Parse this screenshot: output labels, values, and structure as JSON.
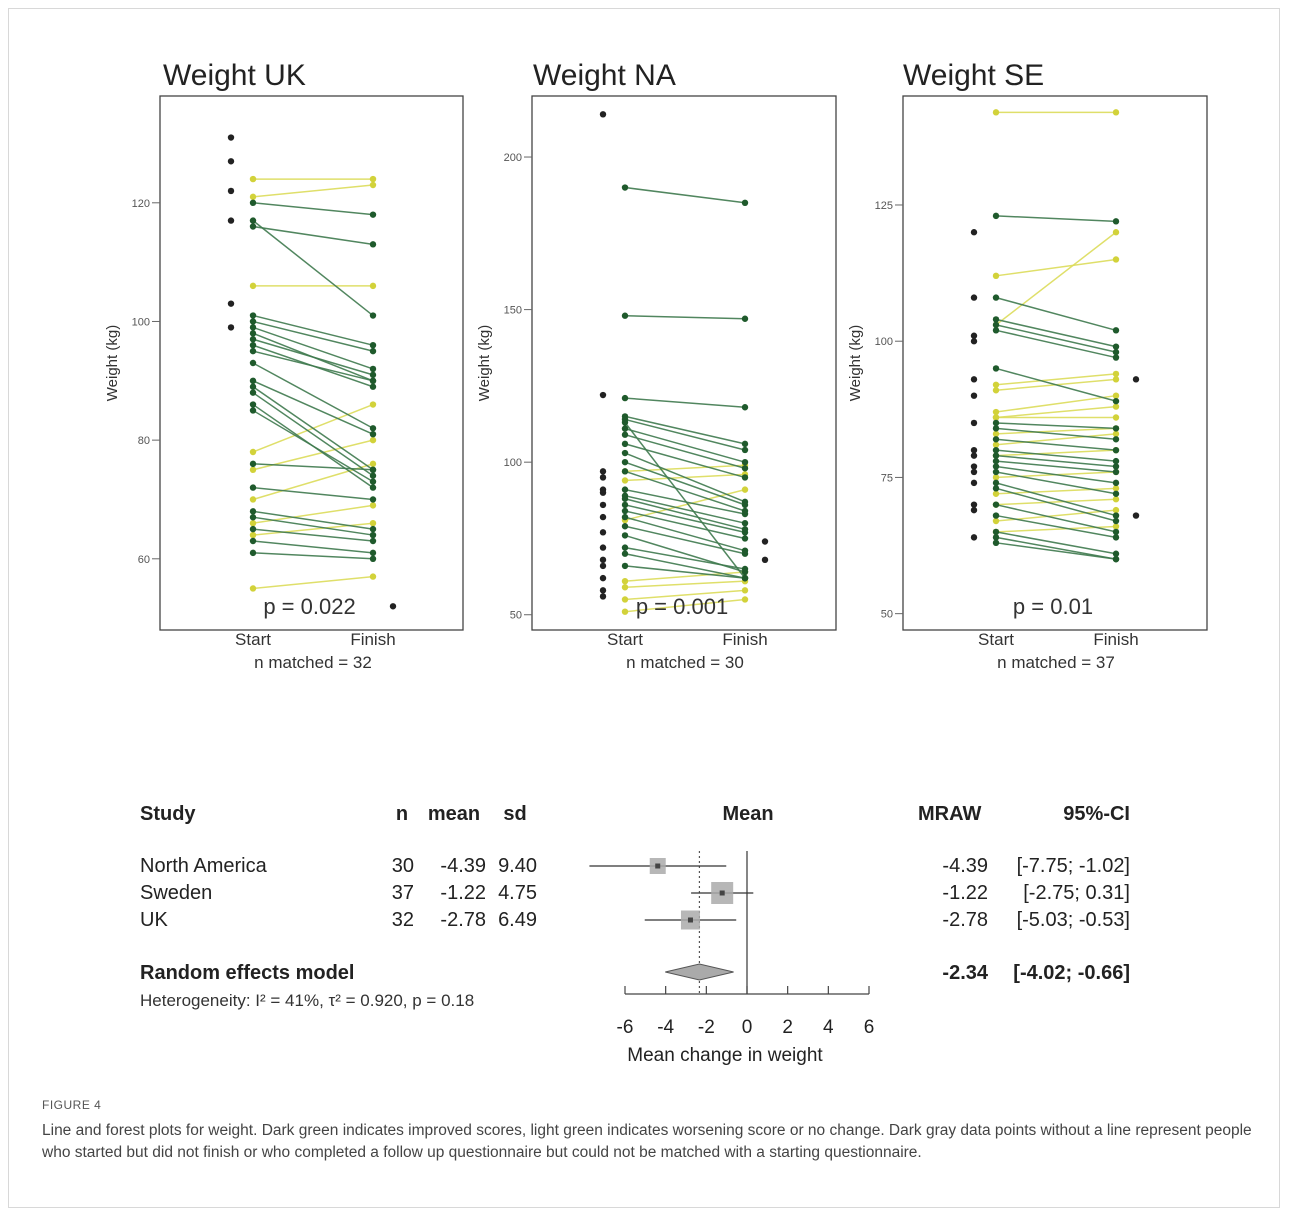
{
  "figure": {
    "label": "FIGURE 4",
    "caption": "Line and forest plots for weight. Dark green indicates improved scores, light green indicates worsening score or no change. Dark gray data points without a line represent people who started but did not finish or who completed a follow up questionnaire but could not be matched with a starting questionnaire."
  },
  "colors": {
    "improved": "#3f7a4e",
    "worsened": "#dcdc5a",
    "unmatched": "#222222",
    "axis": "#555555"
  },
  "chart_data": [
    {
      "type": "line",
      "title": "Weight UK",
      "ylabel": "Weight (kg)",
      "categories": [
        "Start",
        "Finish"
      ],
      "n_label": "n matched = 32",
      "p_label": "p = 0.022",
      "ylim": [
        48,
        138
      ],
      "yticks": [
        60,
        80,
        100,
        120
      ],
      "pairs": [
        [
          117,
          101
        ],
        [
          101,
          96
        ],
        [
          100,
          95
        ],
        [
          99,
          92
        ],
        [
          98,
          90
        ],
        [
          97,
          91
        ],
        [
          96,
          89
        ],
        [
          95,
          90
        ],
        [
          93,
          82
        ],
        [
          90,
          81
        ],
        [
          89,
          75
        ],
        [
          88,
          74
        ],
        [
          86,
          72
        ],
        [
          85,
          73
        ],
        [
          76,
          75
        ],
        [
          72,
          70
        ],
        [
          68,
          65
        ],
        [
          67,
          64
        ],
        [
          65,
          63
        ],
        [
          63,
          61
        ],
        [
          61,
          60
        ],
        [
          124,
          124
        ],
        [
          121,
          123
        ],
        [
          120,
          118
        ],
        [
          116,
          113
        ],
        [
          106,
          106
        ],
        [
          78,
          86
        ],
        [
          75,
          80
        ],
        [
          70,
          76
        ],
        [
          66,
          69
        ],
        [
          64,
          66
        ],
        [
          55,
          57
        ]
      ],
      "unmatched_start": [
        131,
        127,
        122,
        117,
        103,
        99
      ],
      "unmatched_finish": [
        52
      ]
    },
    {
      "type": "line",
      "title": "Weight NA",
      "ylabel": "Weight (kg)",
      "categories": [
        "Start",
        "Finish"
      ],
      "n_label": "n matched = 30",
      "p_label": "p = 0.001",
      "ylim": [
        45,
        220
      ],
      "yticks": [
        50,
        100,
        150,
        200
      ],
      "pairs": [
        [
          190,
          185
        ],
        [
          148,
          147
        ],
        [
          121,
          118
        ],
        [
          115,
          106
        ],
        [
          114,
          104
        ],
        [
          113,
          62
        ],
        [
          111,
          100
        ],
        [
          109,
          98
        ],
        [
          106,
          95
        ],
        [
          103,
          87
        ],
        [
          100,
          86
        ],
        [
          97,
          84
        ],
        [
          91,
          83
        ],
        [
          89,
          80
        ],
        [
          88,
          78
        ],
        [
          86,
          77
        ],
        [
          84,
          75
        ],
        [
          82,
          71
        ],
        [
          79,
          70
        ],
        [
          76,
          64
        ],
        [
          72,
          65
        ],
        [
          70,
          62
        ],
        [
          66,
          62
        ],
        [
          97,
          99
        ],
        [
          94,
          96
        ],
        [
          81,
          91
        ],
        [
          61,
          64
        ],
        [
          59,
          61
        ],
        [
          55,
          58
        ],
        [
          51,
          55
        ]
      ],
      "unmatched_start": [
        214,
        122,
        97,
        95,
        91,
        90,
        86,
        82,
        77,
        72,
        68,
        66,
        62,
        58,
        56
      ],
      "unmatched_finish": [
        74,
        68
      ]
    },
    {
      "type": "line",
      "title": "Weight SE",
      "ylabel": "Weight (kg)",
      "categories": [
        "Start",
        "Finish"
      ],
      "n_label": "n matched = 37",
      "p_label": "p = 0.01",
      "ylim": [
        47,
        145
      ],
      "yticks": [
        50,
        75,
        100,
        125
      ],
      "pairs": [
        [
          123,
          122
        ],
        [
          108,
          102
        ],
        [
          104,
          99
        ],
        [
          103,
          98
        ],
        [
          102,
          97
        ],
        [
          95,
          89
        ],
        [
          86,
          86
        ],
        [
          85,
          84
        ],
        [
          84,
          82
        ],
        [
          82,
          80
        ],
        [
          80,
          78
        ],
        [
          79,
          77
        ],
        [
          78,
          76
        ],
        [
          77,
          74
        ],
        [
          76,
          72
        ],
        [
          74,
          68
        ],
        [
          73,
          67
        ],
        [
          70,
          65
        ],
        [
          68,
          64
        ],
        [
          65,
          61
        ],
        [
          64,
          60
        ],
        [
          63,
          60
        ],
        [
          142,
          142
        ],
        [
          112,
          115
        ],
        [
          103,
          120
        ],
        [
          92,
          94
        ],
        [
          91,
          93
        ],
        [
          87,
          90
        ],
        [
          86,
          88
        ],
        [
          83,
          84
        ],
        [
          81,
          83
        ],
        [
          79,
          80
        ],
        [
          75,
          76
        ],
        [
          72,
          73
        ],
        [
          70,
          71
        ],
        [
          67,
          69
        ],
        [
          65,
          66
        ]
      ],
      "unmatched_start": [
        120,
        108,
        101,
        100,
        93,
        90,
        85,
        80,
        79,
        77,
        76,
        74,
        70,
        69,
        64
      ],
      "unmatched_finish": [
        93,
        68
      ]
    },
    {
      "type": "forest",
      "headers": {
        "study": "Study",
        "n": "n",
        "mean": "mean",
        "sd": "sd",
        "plot": "Mean",
        "mraw": "MRAW",
        "ci": "95%-CI"
      },
      "studies": [
        {
          "name": "North America",
          "n": "30",
          "mean": "-4.39",
          "sd": "9.40",
          "mraw": "-4.39",
          "ci": "[-7.75; -1.02]",
          "est": -4.39,
          "lo": -7.75,
          "hi": -1.02,
          "weight": 0.6
        },
        {
          "name": "Sweden",
          "n": "37",
          "mean": "-1.22",
          "sd": "4.75",
          "mraw": "-1.22",
          "ci": "[-2.75;  0.31]",
          "est": -1.22,
          "lo": -2.75,
          "hi": 0.31,
          "weight": 1.2
        },
        {
          "name": "UK",
          "n": "32",
          "mean": "-2.78",
          "sd": "6.49",
          "mraw": "-2.78",
          "ci": "[-5.03; -0.53]",
          "est": -2.78,
          "lo": -5.03,
          "hi": -0.53,
          "weight": 0.9
        }
      ],
      "pooled": {
        "label": "Random effects model",
        "mraw": "-2.34",
        "ci": "[-4.02; -0.66]",
        "est": -2.34,
        "lo": -4.02,
        "hi": -0.66
      },
      "heterogeneity": "Heterogeneity: I² = 41%, τ² = 0.920, p = 0.18",
      "xlim": [
        -6,
        6
      ],
      "xticks": [
        -6,
        -4,
        -2,
        0,
        2,
        4,
        6
      ],
      "xlabel": "Mean change in weight"
    }
  ]
}
